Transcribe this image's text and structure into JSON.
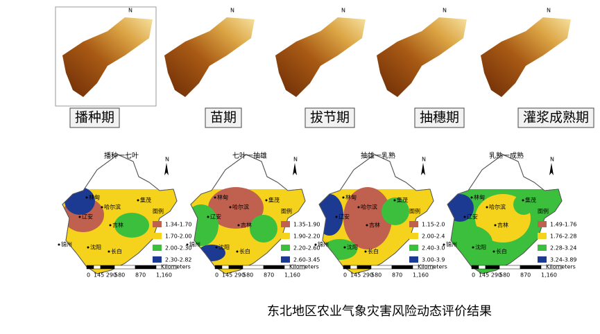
{
  "stage_labels": [
    "播种期",
    "苗期",
    "拔节期",
    "抽穗期",
    "灌浆成熟期"
  ],
  "panels": [
    {
      "title": "播种一七叶",
      "ranges": [
        "1.34-1.70",
        "1.70-2.00",
        "2.00-2.30",
        "2.30-2.82"
      ]
    },
    {
      "title": "七叶一抽雄",
      "ranges": [
        "1.35-1.90",
        "1.90-2.20",
        "2.20-2.60",
        "2.60-3.45"
      ]
    },
    {
      "title": "抽雄一乳熟",
      "ranges": [
        "1.15-2.0",
        "2.00-2.4",
        "2.40-3.0",
        "3.00-3.9"
      ]
    },
    {
      "title": "乳熟一成熟",
      "ranges": [
        "1.49-1.76",
        "1.76-2.28",
        "2.28-3.24",
        "3.24-3.89"
      ]
    }
  ],
  "legend_title": "图例",
  "legend_colors": [
    "#c0604f",
    "#f5d31c",
    "#3cbf3c",
    "#1d3a93"
  ],
  "cities": [
    "林甸",
    "哈尔滨",
    "集茂",
    "吉林",
    "辽安",
    "沈阳",
    "长白",
    "锦州"
  ],
  "north": "N",
  "scale_labels": [
    "0",
    "145 290",
    "580",
    "870",
    "1,160"
  ],
  "scale_unit": "Kilometers",
  "caption": "东北地区农业气象灾害风险动态评价结果"
}
